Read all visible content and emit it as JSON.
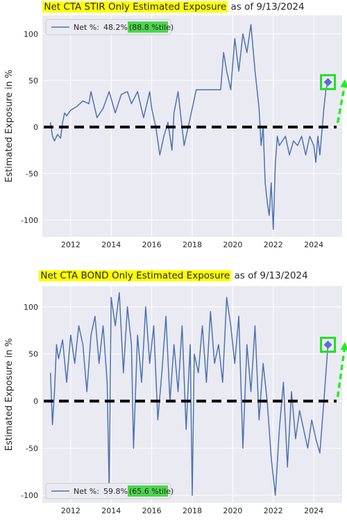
{
  "colors": {
    "series": "#4c72b0",
    "plot_bg": "#eaeaf2",
    "grid": "#ffffff",
    "title_highlight": "#ffff00",
    "percentile_highlight": "#4cd64c",
    "marker_box": "#22dd22",
    "arrow": "#22ee22",
    "zero_line": "#000000"
  },
  "chart_data": [
    {
      "type": "line",
      "title_highlight": "Net CTA STIR Only Estimated Exposure",
      "title_rest": "as of 9/13/2024",
      "ylabel": "Estimated Exposure in %",
      "xlabel": "",
      "xlim": [
        2010.6,
        2025.4
      ],
      "ylim": [
        -118,
        120
      ],
      "xticks": [
        "2012",
        "2014",
        "2016",
        "2018",
        "2020",
        "2022",
        "2024"
      ],
      "yticks": [
        "100",
        "50",
        "0",
        "-50",
        "-100"
      ],
      "grid": true,
      "legend_position": "top-left",
      "legend": {
        "label": "Net %:",
        "value": "48.2%",
        "percentile": "(88.8 %tile)"
      },
      "zero_line": 0,
      "last_point": {
        "x": 2024.7,
        "y": 48.2
      },
      "series": [
        {
          "x": [
            2011.0,
            2011.1,
            2011.2,
            2011.35,
            2011.5,
            2011.6,
            2011.7,
            2011.8,
            2012.0,
            2012.3,
            2012.6,
            2012.9,
            2013.0,
            2013.3,
            2013.6,
            2013.9,
            2014.2,
            2014.5,
            2014.8,
            2015.0,
            2015.3,
            2015.6,
            2015.9,
            2016.0,
            2016.2,
            2016.4,
            2016.6,
            2016.8,
            2017.0,
            2017.1,
            2017.3,
            2017.6,
            2017.9,
            2018.2,
            2018.5,
            2018.8,
            2019.1,
            2019.4,
            2019.55,
            2019.7,
            2019.9,
            2020.1,
            2020.3,
            2020.5,
            2020.7,
            2020.9,
            2021.1,
            2021.3,
            2021.4,
            2021.5,
            2021.6,
            2021.7,
            2021.8,
            2021.9,
            2022.0,
            2022.1,
            2022.2,
            2022.3,
            2022.45,
            2022.6,
            2022.8,
            2023.0,
            2023.2,
            2023.4,
            2023.6,
            2023.8,
            2024.0,
            2024.1,
            2024.2,
            2024.3,
            2024.4,
            2024.5,
            2024.6,
            2024.7
          ],
          "values": [
            5,
            -10,
            -15,
            -8,
            -12,
            5,
            15,
            12,
            18,
            22,
            28,
            25,
            38,
            10,
            20,
            38,
            15,
            35,
            38,
            25,
            38,
            10,
            38,
            20,
            0,
            -30,
            -10,
            5,
            -25,
            15,
            38,
            -20,
            10,
            40,
            40,
            40,
            40,
            40,
            80,
            60,
            40,
            95,
            60,
            100,
            80,
            110,
            60,
            20,
            -20,
            0,
            -60,
            -80,
            -95,
            -60,
            -110,
            -40,
            -10,
            -20,
            -15,
            -10,
            -30,
            -15,
            -20,
            -10,
            -30,
            -10,
            -20,
            -38,
            -10,
            -30,
            -5,
            20,
            40,
            48.2
          ]
        }
      ]
    },
    {
      "type": "line",
      "title_highlight": "Net CTA BOND Only Estimated Exposure",
      "title_rest": "as of 9/13/2024",
      "ylabel": "Estimated Exposure in %",
      "xlabel": "",
      "xlim": [
        2010.6,
        2025.4
      ],
      "ylim": [
        -108,
        122
      ],
      "xticks": [
        "2012",
        "2014",
        "2016",
        "2018",
        "2020",
        "2022",
        "2024"
      ],
      "yticks": [
        "100",
        "50",
        "0",
        "-50",
        "-100"
      ],
      "grid": true,
      "legend_position": "bottom-left",
      "legend": {
        "label": "Net %:",
        "value": "59.8%",
        "percentile": "(65.6 %tile)"
      },
      "zero_line": 0,
      "last_point": {
        "x": 2024.7,
        "y": 59.8
      },
      "series": [
        {
          "x": [
            2011.0,
            2011.1,
            2011.2,
            2011.3,
            2011.4,
            2011.6,
            2011.8,
            2012.0,
            2012.2,
            2012.4,
            2012.6,
            2012.8,
            2013.0,
            2013.2,
            2013.4,
            2013.6,
            2013.8,
            2013.9,
            2014.0,
            2014.2,
            2014.4,
            2014.6,
            2014.8,
            2015.0,
            2015.1,
            2015.3,
            2015.5,
            2015.7,
            2015.9,
            2016.1,
            2016.3,
            2016.5,
            2016.7,
            2016.9,
            2017.1,
            2017.3,
            2017.5,
            2017.7,
            2017.9,
            2018.0,
            2018.1,
            2018.3,
            2018.5,
            2018.7,
            2018.9,
            2019.1,
            2019.3,
            2019.5,
            2019.7,
            2019.9,
            2020.1,
            2020.3,
            2020.5,
            2020.7,
            2020.9,
            2021.1,
            2021.3,
            2021.5,
            2021.7,
            2021.9,
            2022.1,
            2022.3,
            2022.5,
            2022.7,
            2022.9,
            2023.1,
            2023.3,
            2023.5,
            2023.7,
            2023.9,
            2024.1,
            2024.3,
            2024.5,
            2024.6,
            2024.7
          ],
          "values": [
            30,
            -25,
            10,
            60,
            45,
            65,
            20,
            70,
            40,
            80,
            60,
            10,
            70,
            90,
            40,
            80,
            20,
            -95,
            110,
            80,
            115,
            30,
            100,
            60,
            -50,
            70,
            20,
            100,
            40,
            80,
            -20,
            30,
            90,
            0,
            60,
            10,
            80,
            -30,
            60,
            -100,
            50,
            30,
            80,
            20,
            95,
            40,
            60,
            20,
            110,
            80,
            40,
            90,
            -50,
            60,
            10,
            80,
            -20,
            40,
            0,
            -60,
            -100,
            -30,
            20,
            -70,
            10,
            -40,
            -10,
            -30,
            -50,
            -20,
            -40,
            -55,
            0,
            30,
            59.8
          ]
        }
      ]
    }
  ]
}
